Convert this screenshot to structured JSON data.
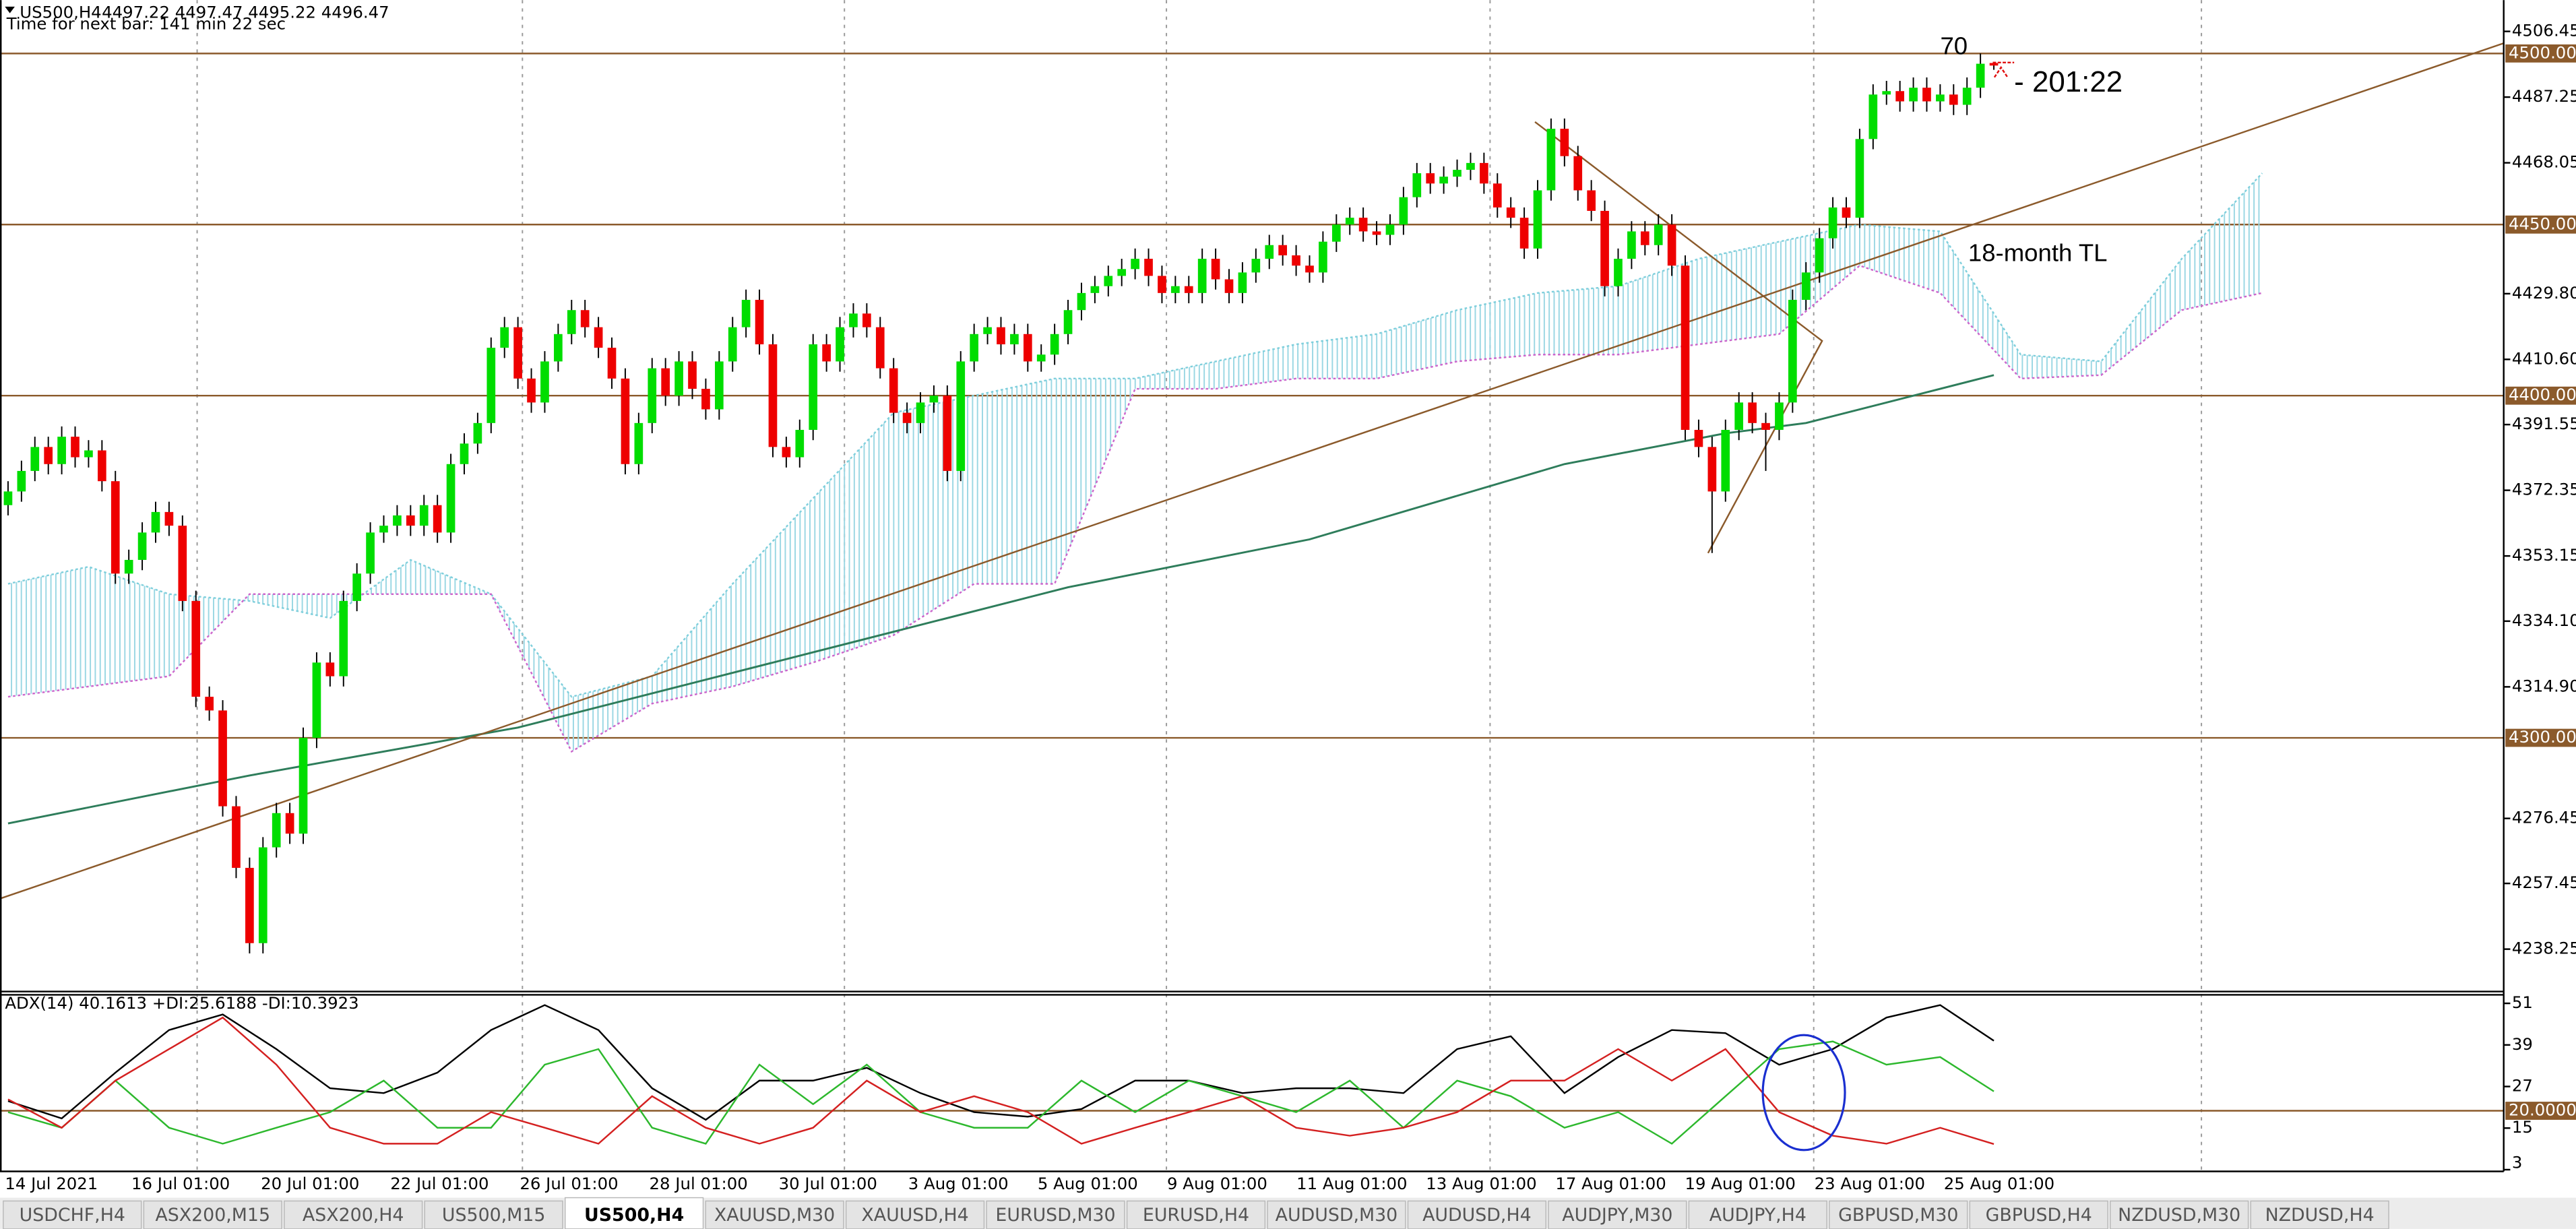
{
  "header": {
    "symbol": "US500,H4",
    "prices": "4497.22 4497.47 4495.22 4496.47",
    "timer": "Time for next bar: 141 min 22 sec"
  },
  "chart_data": [
    {
      "type": "candlestick",
      "open": [
        4368,
        4372,
        4378,
        4385,
        4380,
        4388,
        4382,
        4384,
        4375,
        4348,
        4352,
        4360,
        4366,
        4362,
        4340,
        4312,
        4308,
        4280,
        4262,
        4240,
        4268,
        4278,
        4272,
        4300,
        4322,
        4318,
        4340,
        4348,
        4360,
        4362,
        4365,
        4362,
        4368,
        4360,
        4380,
        4386,
        4392,
        4414,
        4420,
        4405,
        4398,
        4410,
        4418,
        4425,
        4420,
        4414,
        4405,
        4380,
        4392,
        4408,
        4400,
        4410,
        4402,
        4396,
        4410,
        4420,
        4428,
        4415,
        4385,
        4382,
        4390,
        4415,
        4410,
        4420,
        4424,
        4420,
        4408,
        4395,
        4392,
        4398,
        4400,
        4378,
        4410,
        4418,
        4420,
        4415,
        4418,
        4410,
        4412,
        4418,
        4425,
        4430,
        4432,
        4435,
        4437,
        4440,
        4435,
        4430,
        4432,
        4430,
        4440,
        4434,
        4430,
        4436,
        4440,
        4444,
        4441,
        4438,
        4436,
        4445,
        4450,
        4452,
        4448,
        4447,
        4450,
        4458,
        4465,
        4462,
        4464,
        4466,
        4468,
        4462,
        4455,
        4452,
        4443,
        4460,
        4478,
        4470,
        4460,
        4454,
        4432,
        4440,
        4448,
        4444,
        4450,
        4438,
        4390,
        4385,
        4372,
        4390,
        4398,
        4392,
        4390,
        4398,
        4428,
        4436,
        4446,
        4455,
        4452,
        4475,
        4488,
        4489,
        4486,
        4490,
        4486,
        4488,
        4485,
        4490,
        4497.22
      ],
      "high": [
        4375,
        4381,
        4388,
        4388,
        4391,
        4391,
        4387,
        4387,
        4378,
        4355,
        4363,
        4369,
        4369,
        4365,
        4343,
        4315,
        4311,
        4283,
        4265,
        4271,
        4281,
        4281,
        4303,
        4325,
        4325,
        4343,
        4351,
        4363,
        4365,
        4368,
        4368,
        4371,
        4371,
        4383,
        4389,
        4395,
        4417,
        4423,
        4423,
        4408,
        4413,
        4421,
        4428,
        4428,
        4423,
        4417,
        4408,
        4395,
        4411,
        4411,
        4413,
        4413,
        4405,
        4413,
        4423,
        4431,
        4431,
        4418,
        4388,
        4393,
        4418,
        4418,
        4423,
        4427,
        4427,
        4423,
        4411,
        4398,
        4401,
        4403,
        4403,
        4413,
        4421,
        4423,
        4423,
        4421,
        4421,
        4415,
        4421,
        4428,
        4433,
        4435,
        4438,
        4440,
        4443,
        4443,
        4438,
        4435,
        4435,
        4443,
        4443,
        4437,
        4439,
        4443,
        4447,
        4447,
        4444,
        4441,
        4448,
        4453,
        4455,
        4455,
        4451,
        4453,
        4461,
        4468,
        4468,
        4467,
        4469,
        4471,
        4471,
        4465,
        4458,
        4455,
        4463,
        4481,
        4481,
        4473,
        4463,
        4457,
        4443,
        4451,
        4451,
        4453,
        4453,
        4441,
        4393,
        4388,
        4393,
        4401,
        4401,
        4395,
        4401,
        4431,
        4439,
        4449,
        4458,
        4458,
        4478,
        4491,
        4492,
        4492,
        4493,
        4493,
        4491,
        4491,
        4493,
        4500,
        4497.47
      ],
      "low": [
        4365,
        4369,
        4375,
        4377,
        4377,
        4379,
        4379,
        4372,
        4345,
        4345,
        4349,
        4357,
        4359,
        4337,
        4309,
        4305,
        4277,
        4259,
        4237,
        4237,
        4265,
        4269,
        4269,
        4297,
        4315,
        4315,
        4337,
        4345,
        4357,
        4359,
        4359,
        4359,
        4357,
        4357,
        4377,
        4383,
        4389,
        4411,
        4402,
        4395,
        4395,
        4407,
        4415,
        4417,
        4411,
        4402,
        4377,
        4377,
        4389,
        4397,
        4397,
        4399,
        4393,
        4393,
        4407,
        4417,
        4412,
        4382,
        4379,
        4379,
        4387,
        4407,
        4407,
        4417,
        4417,
        4405,
        4392,
        4389,
        4389,
        4395,
        4375,
        4375,
        4407,
        4415,
        4412,
        4412,
        4407,
        4407,
        4409,
        4415,
        4422,
        4427,
        4429,
        4432,
        4434,
        4432,
        4427,
        4427,
        4427,
        4427,
        4431,
        4427,
        4427,
        4433,
        4437,
        4438,
        4435,
        4433,
        4433,
        4442,
        4447,
        4445,
        4444,
        4444,
        4447,
        4455,
        4459,
        4459,
        4461,
        4463,
        4459,
        4452,
        4449,
        4440,
        4440,
        4457,
        4467,
        4457,
        4451,
        4429,
        4429,
        4437,
        4441,
        4441,
        4435,
        4387,
        4382,
        4354,
        4369,
        4387,
        4389,
        4378,
        4387,
        4395,
        4425,
        4433,
        4443,
        4449,
        4449,
        4472,
        4485,
        4483,
        4483,
        4483,
        4483,
        4482,
        4482,
        4487,
        4495.22
      ],
      "close": [
        4372,
        4378,
        4385,
        4380,
        4388,
        4382,
        4384,
        4375,
        4348,
        4352,
        4360,
        4366,
        4362,
        4340,
        4312,
        4308,
        4280,
        4262,
        4240,
        4268,
        4278,
        4272,
        4300,
        4322,
        4318,
        4340,
        4348,
        4360,
        4362,
        4365,
        4362,
        4368,
        4360,
        4380,
        4386,
        4392,
        4414,
        4420,
        4405,
        4398,
        4410,
        4418,
        4425,
        4420,
        4414,
        4405,
        4380,
        4392,
        4408,
        4400,
        4410,
        4402,
        4396,
        4410,
        4420,
        4428,
        4415,
        4385,
        4382,
        4390,
        4415,
        4410,
        4420,
        4424,
        4420,
        4408,
        4395,
        4392,
        4398,
        4400,
        4378,
        4410,
        4418,
        4420,
        4415,
        4418,
        4410,
        4412,
        4418,
        4425,
        4430,
        4432,
        4435,
        4437,
        4440,
        4435,
        4430,
        4432,
        4430,
        4440,
        4434,
        4430,
        4436,
        4440,
        4444,
        4441,
        4438,
        4436,
        4445,
        4450,
        4452,
        4448,
        4447,
        4450,
        4458,
        4465,
        4462,
        4464,
        4466,
        4468,
        4462,
        4455,
        4452,
        4443,
        4460,
        4478,
        4470,
        4460,
        4454,
        4432,
        4440,
        4448,
        4444,
        4450,
        4438,
        4390,
        4385,
        4372,
        4390,
        4398,
        4392,
        4390,
        4398,
        4428,
        4436,
        4446,
        4455,
        4452,
        4475,
        4488,
        4489,
        4486,
        4490,
        4486,
        4488,
        4485,
        4490,
        4497,
        4496.47
      ],
      "colors": {
        "up": "#00dd00",
        "down": "#ee0000",
        "wick": "#000000"
      },
      "xlim": [
        -0.6,
        186
      ],
      "ylim": [
        4226.1,
        4515.6
      ],
      "yticks": [
        4506.45,
        4487.25,
        4468.05,
        {
          "value": 4429.8,
          "label": "4429.80"
        },
        {
          "value": 4410.6,
          "label": "4410.60"
        },
        4391.55,
        4372.35,
        4353.15,
        {
          "value": 4334.1,
          "label": "4334.10"
        },
        {
          "value": 4314.9,
          "label": "4314.90"
        },
        4276.45,
        4257.45,
        4238.25
      ],
      "xtick_labels": [
        "14 Jul 2021",
        "16 Jul 01:00",
        "20 Jul 01:00",
        "22 Jul 01:00",
        "26 Jul 01:00",
        "28 Jul 01:00",
        "30 Jul 01:00",
        "3 Aug 01:00",
        "5 Aug 01:00",
        "9 Aug 01:00",
        "11 Aug 01:00",
        "13 Aug 01:00",
        "17 Aug 01:00",
        "19 Aug 01:00",
        "23 Aug 01:00",
        "25 Aug 01:00"
      ],
      "levels": [
        {
          "value": 4500,
          "label": "4500.00"
        },
        {
          "value": 4450,
          "label": "4450.00"
        },
        {
          "value": 4400,
          "label": "4400.00"
        },
        {
          "value": 4300,
          "label": "4300.00"
        }
      ],
      "level_color": "#8b5a2b",
      "moving_average": {
        "x": [
          0,
          18,
          38,
          60,
          79,
          97,
          116,
          128,
          134,
          148
        ],
        "values": [
          4275,
          4289,
          4303,
          4325,
          4344,
          4358,
          4380,
          4389,
          4392,
          4406
        ],
        "color": "#2e7d5b"
      },
      "ichimoku": {
        "x": [
          0,
          6,
          12,
          18,
          24,
          30,
          36,
          42,
          48,
          54,
          60,
          66,
          72,
          78,
          84,
          90,
          96,
          102,
          108,
          114,
          120,
          126,
          132,
          138,
          144,
          150,
          156,
          162,
          168
        ],
        "span_a": [
          4345,
          4350,
          4342,
          4340,
          4335,
          4352,
          4342,
          4312,
          4318,
          4345,
          4370,
          4395,
          4400,
          4405,
          4405,
          4410,
          4415,
          4418,
          4425,
          4430,
          4432,
          4440,
          4445,
          4450,
          4448,
          4412,
          4410,
          4440,
          4465
        ],
        "span_b": [
          4312,
          4315,
          4318,
          4342,
          4342,
          4342,
          4342,
          4296,
          4310,
          4315,
          4322,
          4330,
          4345,
          4345,
          4402,
          4402,
          4405,
          4405,
          4410,
          4412,
          4412,
          4415,
          4418,
          4438,
          4430,
          4405,
          4406,
          4425,
          4430
        ],
        "color_a": "#7fcfdc",
        "color_b": "#cc66cc"
      },
      "trend_lines": [
        {
          "x": [
            -0.6,
            186
          ],
          "values": [
            4253,
            4503
          ]
        },
        {
          "x": [
            113.8,
            135.2,
            126.7
          ],
          "values": [
            4480,
            4416,
            4354
          ]
        }
      ],
      "annotations": [
        "70",
        "- 201:22",
        "18-month TL"
      ]
    },
    {
      "type": "line",
      "title": "ADX(14) 40.1613 +DI:25.6188 -DI:10.3923",
      "x": [
        0,
        4,
        8,
        12,
        16,
        20,
        24,
        28,
        32,
        36,
        40,
        44,
        48,
        52,
        56,
        60,
        64,
        68,
        72,
        76,
        80,
        84,
        88,
        92,
        96,
        100,
        104,
        108,
        112,
        116,
        120,
        124,
        128,
        132,
        136,
        140,
        144,
        148
      ],
      "xlim": [
        -0.6,
        186
      ],
      "ylim": [
        2.5,
        53.7
      ],
      "yticks": [
        51,
        39,
        27,
        15,
        3
      ],
      "levels": [
        {
          "value": 20,
          "label": "20.0000"
        }
      ],
      "level_color": "#8b5a2b",
      "series": [
        {
          "color": "#000000",
          "values": [
            22.8,
            17.8,
            31,
            43.3,
            47.8,
            37.8,
            26.5,
            25.1,
            31,
            43.3,
            50.5,
            43.3,
            26.5,
            17.4,
            28.7,
            28.7,
            32.4,
            25.1,
            19.6,
            18.3,
            20.5,
            28.7,
            28.7,
            25.1,
            26.5,
            26.5,
            25.1,
            37.8,
            41.5,
            25.1,
            35.5,
            43.3,
            42.4,
            33.3,
            37.8,
            46.9,
            50.5,
            40.2
          ]
        },
        {
          "color": "#2db82d",
          "values": [
            19.6,
            15.1,
            28.7,
            15.1,
            10.5,
            15.1,
            19.6,
            28.7,
            15.1,
            15.1,
            33.3,
            37.8,
            15.1,
            10.5,
            33.3,
            21.9,
            33.3,
            19.6,
            15.1,
            15.1,
            28.7,
            19.6,
            28.7,
            24.2,
            19.6,
            28.7,
            15.1,
            28.7,
            24.2,
            15.1,
            19.6,
            10.5,
            24.2,
            37.8,
            40,
            33.3,
            35.5,
            25.6
          ]
        },
        {
          "color": "#d42020",
          "values": [
            23.3,
            15.1,
            28.7,
            37.8,
            46.9,
            33.3,
            15.1,
            10.5,
            10.5,
            19.6,
            15.1,
            10.5,
            24.2,
            15.1,
            10.5,
            15.1,
            28.7,
            19.6,
            24.2,
            19.6,
            10.5,
            15.1,
            19.6,
            24.2,
            15.1,
            12.8,
            15.1,
            19.6,
            28.7,
            28.7,
            37.8,
            28.7,
            37.8,
            19.6,
            12.8,
            10.5,
            15.1,
            10.4
          ]
        }
      ]
    }
  ],
  "tabs": [
    "USDCHF,H4",
    "ASX200,M15",
    "ASX200,H4",
    "US500,M15",
    "US500,H4",
    "XAUUSD,M30",
    "XAUUSD,H4",
    "EURUSD,M30",
    "EURUSD,H4",
    "AUDUSD,M30",
    "AUDUSD,H4",
    "AUDJPY,M30",
    "AUDJPY,H4",
    "GBPUSD,M30",
    "GBPUSD,H4",
    "NZDUSD,M30",
    "NZDUSD,H4"
  ],
  "active_tab": 4
}
